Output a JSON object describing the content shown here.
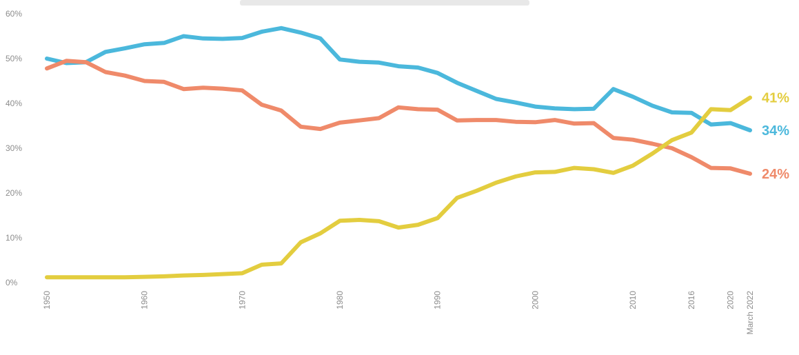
{
  "chart_data": {
    "type": "line",
    "title": "",
    "xlabel": "",
    "ylabel": "",
    "ylim": [
      0,
      60
    ],
    "y_ticks": [
      0,
      10,
      20,
      30,
      40,
      50,
      60
    ],
    "y_tick_labels": [
      "0%",
      "10%",
      "20%",
      "30%",
      "40%",
      "50%",
      "60%"
    ],
    "x_ticks": [
      1950,
      1960,
      1970,
      1980,
      1990,
      2000,
      2010,
      2016,
      2020,
      2022
    ],
    "x_tick_labels": [
      "1950",
      "1960",
      "1970",
      "1980",
      "1990",
      "2000",
      "2010",
      "2016",
      "2020",
      "March 2022"
    ],
    "xlim": [
      1950,
      2022
    ],
    "grid": false,
    "series": [
      {
        "color": "#4bb8dc",
        "end_label": "34%",
        "x": [
          1950,
          1952,
          1954,
          1956,
          1958,
          1960,
          1962,
          1964,
          1966,
          1968,
          1970,
          1972,
          1974,
          1976,
          1978,
          1980,
          1982,
          1984,
          1986,
          1988,
          1990,
          1992,
          1994,
          1996,
          1998,
          2000,
          2002,
          2004,
          2006,
          2008,
          2010,
          2012,
          2014,
          2016,
          2018,
          2020,
          2022
        ],
        "values": [
          50,
          49,
          49.2,
          51.5,
          52.3,
          53.2,
          53.5,
          55,
          54.5,
          54.4,
          54.6,
          56,
          56.8,
          55.8,
          54.5,
          49.8,
          49.3,
          49.1,
          48.3,
          48,
          46.8,
          44.6,
          42.8,
          41,
          40.2,
          39.3,
          38.9,
          38.7,
          38.8,
          43.2,
          41.5,
          39.5,
          38,
          37.9,
          35.3,
          35.6,
          34
        ]
      },
      {
        "color": "#ef8a6a",
        "end_label": "24%",
        "x": [
          1950,
          1952,
          1954,
          1956,
          1958,
          1960,
          1962,
          1964,
          1966,
          1968,
          1970,
          1972,
          1974,
          1976,
          1978,
          1980,
          1982,
          1984,
          1986,
          1988,
          1990,
          1992,
          1994,
          1996,
          1998,
          2000,
          2002,
          2004,
          2006,
          2008,
          2010,
          2012,
          2014,
          2016,
          2018,
          2020,
          2022
        ],
        "values": [
          47.8,
          49.5,
          49.2,
          47,
          46.2,
          45,
          44.8,
          43.2,
          43.5,
          43.3,
          42.9,
          39.7,
          38.4,
          34.8,
          34.3,
          35.7,
          36.2,
          36.7,
          39.1,
          38.7,
          38.6,
          36.2,
          36.3,
          36.3,
          35.9,
          35.8,
          36.3,
          35.5,
          35.6,
          32.3,
          31.9,
          31,
          30,
          28,
          25.6,
          25.5,
          24.3
        ]
      },
      {
        "color": "#e3cd3f",
        "end_label": "41%",
        "x": [
          1950,
          1952,
          1954,
          1956,
          1958,
          1960,
          1962,
          1964,
          1966,
          1968,
          1970,
          1972,
          1974,
          1976,
          1978,
          1980,
          1982,
          1984,
          1986,
          1988,
          1990,
          1992,
          1994,
          1996,
          1998,
          2000,
          2002,
          2004,
          2006,
          2008,
          2010,
          2012,
          2014,
          2016,
          2018,
          2020,
          2022
        ],
        "values": [
          1.2,
          1.2,
          1.2,
          1.2,
          1.2,
          1.3,
          1.4,
          1.6,
          1.7,
          1.9,
          2.1,
          4,
          4.3,
          9,
          11,
          13.8,
          14,
          13.7,
          12.3,
          12.9,
          14.4,
          18.9,
          20.5,
          22.3,
          23.7,
          24.6,
          24.7,
          25.6,
          25.3,
          24.5,
          26.1,
          28.8,
          31.8,
          33.5,
          38.7,
          38.5,
          41.3
        ]
      }
    ]
  }
}
